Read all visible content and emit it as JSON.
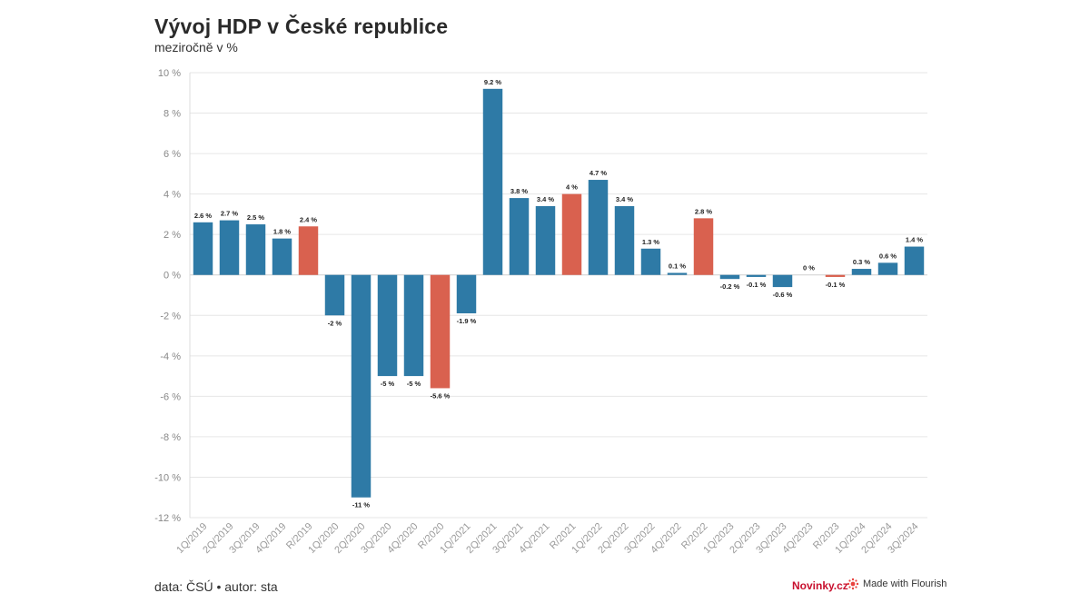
{
  "title": "Vývoj HDP v České republice",
  "subtitle": "meziročně v %",
  "footer": {
    "source": "data: ČSÚ • autor: sta",
    "brand": "Novinky.cz",
    "made_with": "Made with Flourish"
  },
  "colors": {
    "quarter": "#2e7aa6",
    "year": "#d9614f",
    "grid": "#e6e6e6"
  },
  "icons": {
    "flourish": "flourish-logo-icon"
  },
  "chart_data": {
    "type": "bar",
    "title": "Vývoj HDP v České republice",
    "subtitle": "meziročně v %",
    "ylim": [
      -12,
      10
    ],
    "yticks": [
      10,
      8,
      6,
      4,
      2,
      0,
      -2,
      -4,
      -6,
      -8,
      -10,
      -12
    ],
    "ytick_labels": [
      "10 %",
      "8 %",
      "6 %",
      "4 %",
      "2 %",
      "0 %",
      "-2 %",
      "-4 %",
      "-6 %",
      "-8 %",
      "-10 %",
      "-12 %"
    ],
    "grid": true,
    "categories": [
      "1Q/2019",
      "2Q/2019",
      "3Q/2019",
      "4Q/2019",
      "R/2019",
      "1Q/2020",
      "2Q/2020",
      "3Q/2020",
      "4Q/2020",
      "R/2020",
      "1Q/2021",
      "2Q/2021",
      "3Q/2021",
      "4Q/2021",
      "R/2021",
      "1Q/2022",
      "2Q/2022",
      "3Q/2022",
      "4Q/2022",
      "R/2022",
      "1Q/2023",
      "2Q/2023",
      "3Q/2023",
      "4Q/2023",
      "R/2023",
      "1Q/2024",
      "2Q/2024",
      "3Q/2024"
    ],
    "values": [
      2.6,
      2.7,
      2.5,
      1.8,
      2.4,
      -2,
      -11,
      -5,
      -5,
      -5.6,
      -1.9,
      9.2,
      3.8,
      3.4,
      4,
      4.7,
      3.4,
      1.3,
      0.1,
      2.8,
      -0.2,
      -0.1,
      -0.6,
      0,
      -0.1,
      0.3,
      0.6,
      1.4
    ],
    "value_labels": [
      "2.6 %",
      "2.7 %",
      "2.5 %",
      "1.8 %",
      "2.4 %",
      "-2 %",
      "-11 %",
      "-5 %",
      "-5 %",
      "-5.6 %",
      "-1.9 %",
      "9.2 %",
      "3.8 %",
      "3.4 %",
      "4 %",
      "4.7 %",
      "3.4 %",
      "1.3 %",
      "0.1 %",
      "2.8 %",
      "-0.2 %",
      "-0.1 %",
      "-0.6 %",
      "0 %",
      "-0.1 %",
      "0.3 %",
      "0.6 %",
      "1.4 %"
    ]
  }
}
